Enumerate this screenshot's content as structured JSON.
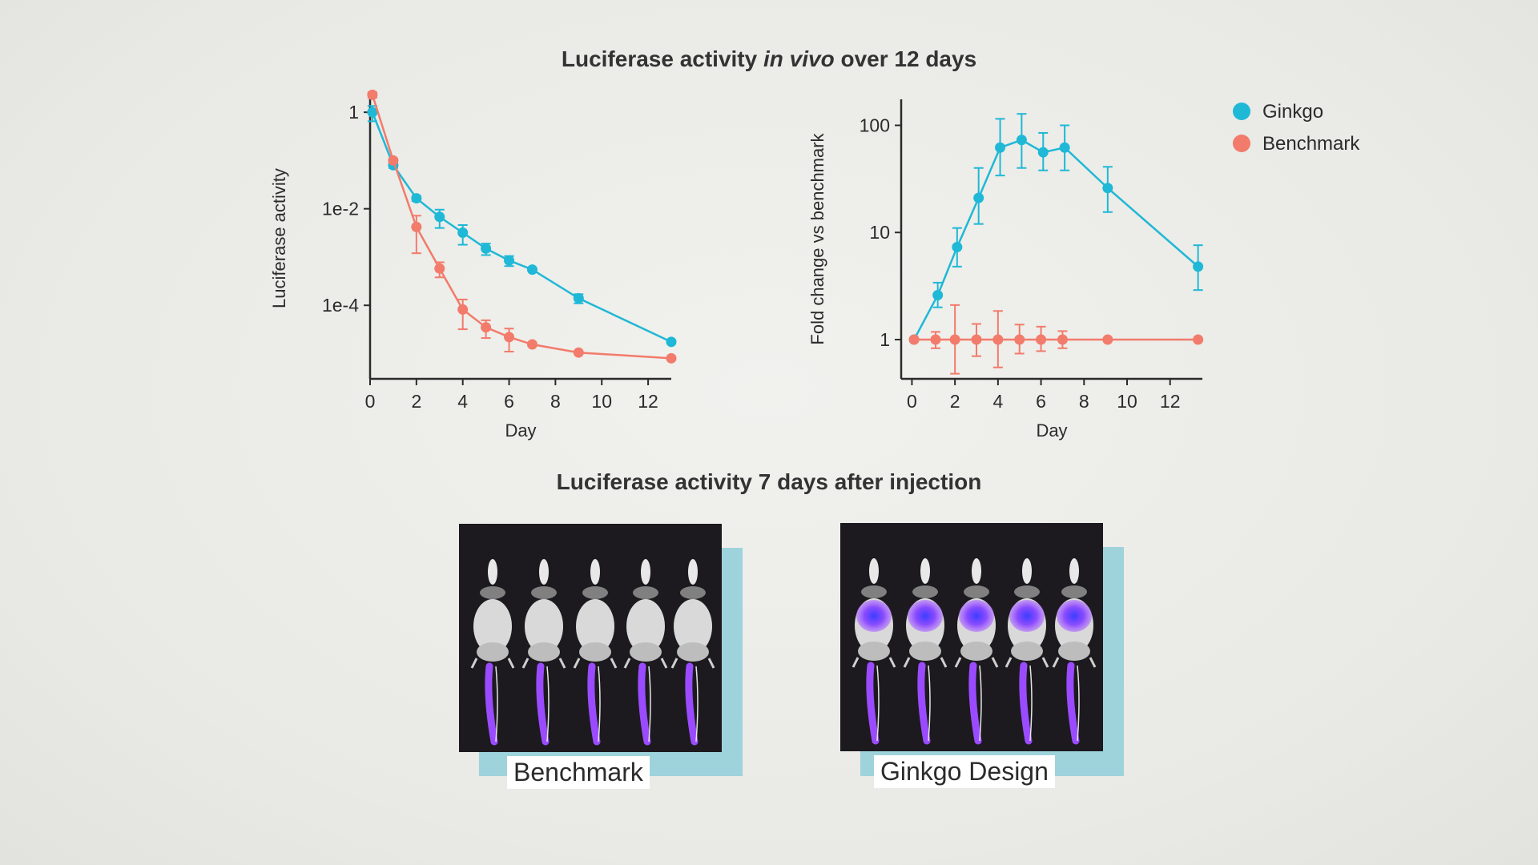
{
  "titles": {
    "top_prefix": "Luciferase activity ",
    "top_italic": "in vivo",
    "top_suffix": " over 12 days",
    "bottom": "Luciferase activity 7 days after injection"
  },
  "legend": [
    {
      "name": "Ginkgo",
      "color": "#1fb8d6"
    },
    {
      "name": "Benchmark",
      "color": "#f27b6b"
    }
  ],
  "chart_data": [
    {
      "type": "line",
      "xlabel": "Day",
      "ylabel": "Luciferase activity",
      "xlim": [
        0,
        13
      ],
      "xticks": [
        0,
        2,
        4,
        6,
        8,
        10,
        12
      ],
      "ylog": true,
      "ylim": [
        3e-06,
        2
      ],
      "yticks": [
        {
          "value": 1,
          "label": "1"
        },
        {
          "value": 0.01,
          "label": "1e-2"
        },
        {
          "value": 0.0001,
          "label": "1e-4"
        }
      ],
      "series": [
        {
          "name": "Ginkgo",
          "color": "#1fb8d6",
          "x": [
            0.1,
            1,
            2,
            3,
            4,
            5,
            6,
            7,
            9,
            13
          ],
          "y": [
            1.0,
            0.08,
            0.0165,
            0.0068,
            0.0032,
            0.0015,
            0.00085,
            0.00055,
            0.00014,
            1.75e-05
          ],
          "err": [
            0.35,
            0.01,
            0.002,
            0.0028,
            0.0014,
            0.0004,
            0.0002,
            0.0,
            3e-05,
            0.0
          ]
        },
        {
          "name": "Benchmark",
          "color": "#f27b6b",
          "x": [
            0.1,
            1,
            2,
            3,
            4,
            5,
            6,
            7,
            9,
            13
          ],
          "y": [
            2.3,
            0.1,
            0.0042,
            0.00058,
            8.2e-05,
            3.5e-05,
            2.2e-05,
            1.55e-05,
            1.05e-05,
            8e-06
          ],
          "err": [
            0.3,
            0.01,
            0.003,
            0.0002,
            5e-05,
            1.4e-05,
            1.1e-05,
            0.0,
            0.0,
            0.0
          ]
        }
      ]
    },
    {
      "type": "line",
      "xlabel": "Day",
      "ylabel": "Fold change vs benchmark",
      "xlim": [
        -0.5,
        13.5
      ],
      "xticks": [
        0,
        2,
        4,
        6,
        8,
        10,
        12
      ],
      "ylog": true,
      "ylim": [
        0.43,
        175
      ],
      "yticks": [
        {
          "value": 1,
          "label": "1"
        },
        {
          "value": 10,
          "label": "10"
        },
        {
          "value": 100,
          "label": "100"
        }
      ],
      "series": [
        {
          "name": "Ginkgo",
          "color": "#1fb8d6",
          "x": [
            0.1,
            1.2,
            2.1,
            3.1,
            4.1,
            5.1,
            6.1,
            7.1,
            9.1,
            13.3
          ],
          "y": [
            1,
            2.6,
            7.3,
            21,
            62,
            73,
            56,
            62,
            26,
            4.8
          ],
          "lo": [
            1,
            2.0,
            4.8,
            12,
            34,
            40,
            38,
            38,
            15.5,
            2.9
          ],
          "hi": [
            1,
            3.4,
            11,
            40,
            115,
            128,
            85,
            100,
            41,
            7.6
          ]
        },
        {
          "name": "Benchmark",
          "color": "#f27b6b",
          "x": [
            0.1,
            1.1,
            2.0,
            3.0,
            4.0,
            5.0,
            6.0,
            7.0,
            9.1,
            13.3
          ],
          "y": [
            1,
            1,
            1,
            1,
            1,
            1,
            1,
            1,
            1,
            1
          ],
          "lo": [
            1,
            0.83,
            0.48,
            0.7,
            0.55,
            0.74,
            0.78,
            0.83,
            1,
            1
          ],
          "hi": [
            1,
            1.18,
            2.1,
            1.4,
            1.85,
            1.38,
            1.32,
            1.2,
            1,
            1
          ]
        }
      ]
    }
  ],
  "panels": {
    "left_caption": "Benchmark",
    "right_caption": "Ginkgo Design"
  }
}
